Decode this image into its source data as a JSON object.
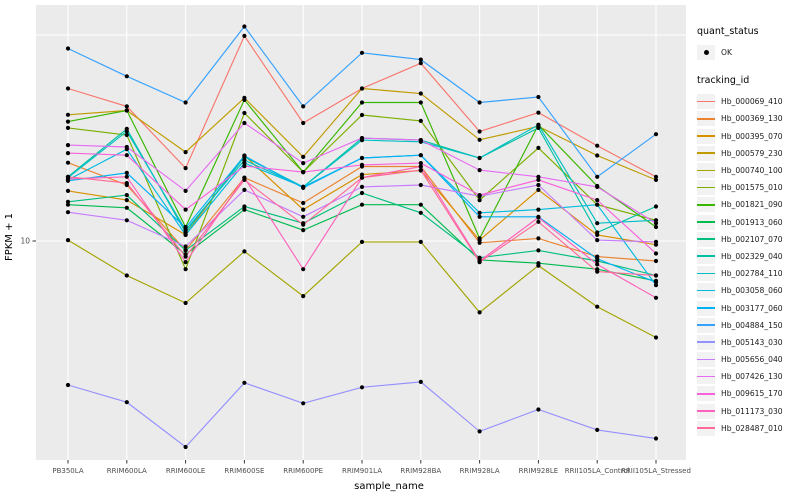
{
  "figure": {
    "background": "#FFFFFF",
    "panel_bg": "#EBEBEB",
    "grid_color": "#FFFFFF",
    "tick_color": "#333333",
    "axis_text_color": "#4D4D4D",
    "point_color": "#000000"
  },
  "y_axis": {
    "title": "FPKM + 1",
    "scale": "log10",
    "tick_labels": [
      "10"
    ],
    "gridline_values": [
      100,
      10
    ]
  },
  "x_axis": {
    "title": "sample_name",
    "categories": [
      "PB350LA",
      "RRIM600LA",
      "RRIM600LE",
      "RRIM600SE",
      "RRIM600PE",
      "RRIM901LA",
      "RRIM928BA",
      "RRIM928LA",
      "RRIM928LE",
      "RRII105LA_Control",
      "RRII105LA_Stressed"
    ]
  },
  "legend": {
    "quant_status": {
      "title": "quant_status",
      "items": [
        {
          "label": "OK",
          "glyph": "point",
          "color": "#000000"
        }
      ]
    },
    "tracking_id": {
      "title": "tracking_id"
    }
  },
  "chart_data": {
    "type": "line",
    "title": "",
    "xlabel": "sample_name",
    "ylabel": "FPKM + 1",
    "y_scale": "log10",
    "y_gridlines": [
      100,
      10
    ],
    "ylim": [
      1,
      115
    ],
    "grid": true,
    "legend_position": "right",
    "x_categories": [
      "PB350LA",
      "RRIM600LA",
      "RRIM600LE",
      "RRIM600SE",
      "RRIM600PE",
      "RRIM901LA",
      "RRIM928BA",
      "RRIM928LA",
      "RRIM928LE",
      "RRII105LA_Control",
      "RRII105LA_Stressed"
    ],
    "series": [
      {
        "name": "Hb_000069_410",
        "color": "#F8766D",
        "values": [
          55,
          45,
          22.6,
          99,
          37.4,
          55,
          73,
          34,
          42,
          29,
          20.5
        ]
      },
      {
        "name": "Hb_000369_130",
        "color": "#EA8331",
        "values": [
          24,
          18.7,
          9.0,
          20.3,
          15.3,
          23,
          23,
          9.8,
          10.3,
          8.4,
          8.0
        ]
      },
      {
        "name": "Hb_000395_070",
        "color": "#D89000",
        "values": [
          17.5,
          15.8,
          10.7,
          26,
          14.2,
          21,
          22,
          10.1,
          17.7,
          10.7,
          9.6
        ]
      },
      {
        "name": "Hb_000579_230",
        "color": "#C09B00",
        "values": [
          41,
          43,
          27,
          49.5,
          25.6,
          55,
          52,
          31,
          36,
          26,
          19.8
        ]
      },
      {
        "name": "Hb_000740_100",
        "color": "#A3A500",
        "values": [
          10.1,
          6.8,
          5.0,
          8.9,
          5.4,
          9.9,
          9.9,
          4.5,
          7.6,
          4.8,
          3.4
        ]
      },
      {
        "name": "Hb_001575_010",
        "color": "#7CAE00",
        "values": [
          35.4,
          32.7,
          7.3,
          41.8,
          21.6,
          40.9,
          38.3,
          15.8,
          28.3,
          15.0,
          12.6
        ]
      },
      {
        "name": "Hb_001821_090",
        "color": "#39B600",
        "values": [
          38,
          43,
          11.7,
          48.4,
          21.6,
          47,
          47,
          10.3,
          36.6,
          18.5,
          11.7
        ]
      },
      {
        "name": "Hb_001913_060",
        "color": "#00BB4E",
        "values": [
          15.0,
          14.5,
          8.6,
          14.2,
          11.3,
          15.0,
          15.0,
          8.1,
          7.8,
          7.3,
          6.4
        ]
      },
      {
        "name": "Hb_002107_070",
        "color": "#00BF7D",
        "values": [
          15.5,
          16.7,
          9.0,
          14.7,
          12.2,
          17.1,
          13.7,
          8.3,
          9.0,
          8.0,
          6.8
        ]
      },
      {
        "name": "Hb_002329_040",
        "color": "#00C1A3",
        "values": [
          20.5,
          35,
          11.0,
          25.6,
          18.3,
          31.6,
          30.9,
          25.3,
          35.4,
          11.0,
          14.7
        ]
      },
      {
        "name": "Hb_002784_110",
        "color": "#00BFC4",
        "values": [
          20.3,
          34.1,
          11.3,
          24.7,
          18.3,
          30.9,
          30.3,
          25.3,
          36.6,
          12.2,
          12.6
        ]
      },
      {
        "name": "Hb_003058_060",
        "color": "#00BAE0",
        "values": [
          19.8,
          27.9,
          10.7,
          23.9,
          18.3,
          25.3,
          26.1,
          13.7,
          14.2,
          15.0,
          6.1
        ]
      },
      {
        "name": "Hb_003177_060",
        "color": "#00B0F6",
        "values": [
          19.6,
          21.4,
          11.6,
          25.9,
          18.1,
          25.3,
          26.1,
          13.1,
          13.1,
          8.2,
          6.3
        ]
      },
      {
        "name": "Hb_004884_150",
        "color": "#35A2FF",
        "values": [
          86,
          63,
          47,
          110,
          45,
          82,
          76,
          47,
          50,
          20.5,
          33
        ]
      },
      {
        "name": "Hb_005143_030",
        "color": "#9590FF",
        "values": [
          2.0,
          1.65,
          1.0,
          2.05,
          1.63,
          1.95,
          2.07,
          1.19,
          1.52,
          1.21,
          1.1
        ]
      },
      {
        "name": "Hb_005656_040",
        "color": "#C77CFF",
        "values": [
          13.8,
          12.6,
          9.4,
          17.7,
          13.1,
          18.3,
          18.7,
          16.5,
          18.7,
          10.1,
          9.9
        ]
      },
      {
        "name": "Hb_007426_130",
        "color": "#E76BF3",
        "values": [
          29.2,
          28.6,
          17.5,
          37.4,
          23.9,
          31.6,
          30.9,
          22.1,
          20.5,
          18.3,
          12.2
        ]
      },
      {
        "name": "Hb_009615_170",
        "color": "#FA62DB",
        "values": [
          26.7,
          26.1,
          14.2,
          23.1,
          21.6,
          23.4,
          23.9,
          16.7,
          19.8,
          15.8,
          8.7
        ]
      },
      {
        "name": "Hb_011173_030",
        "color": "#FF62BC",
        "values": [
          20.0,
          20.5,
          7.9,
          20.3,
          7.3,
          20.3,
          23.0,
          8.0,
          13.0,
          7.7,
          5.3
        ]
      },
      {
        "name": "Hb_028487_010",
        "color": "#FF6A98",
        "values": [
          20.5,
          19.1,
          8.4,
          19.8,
          12.0,
          20.3,
          22.1,
          7.9,
          12.4,
          7.1,
          6.8
        ]
      }
    ]
  }
}
